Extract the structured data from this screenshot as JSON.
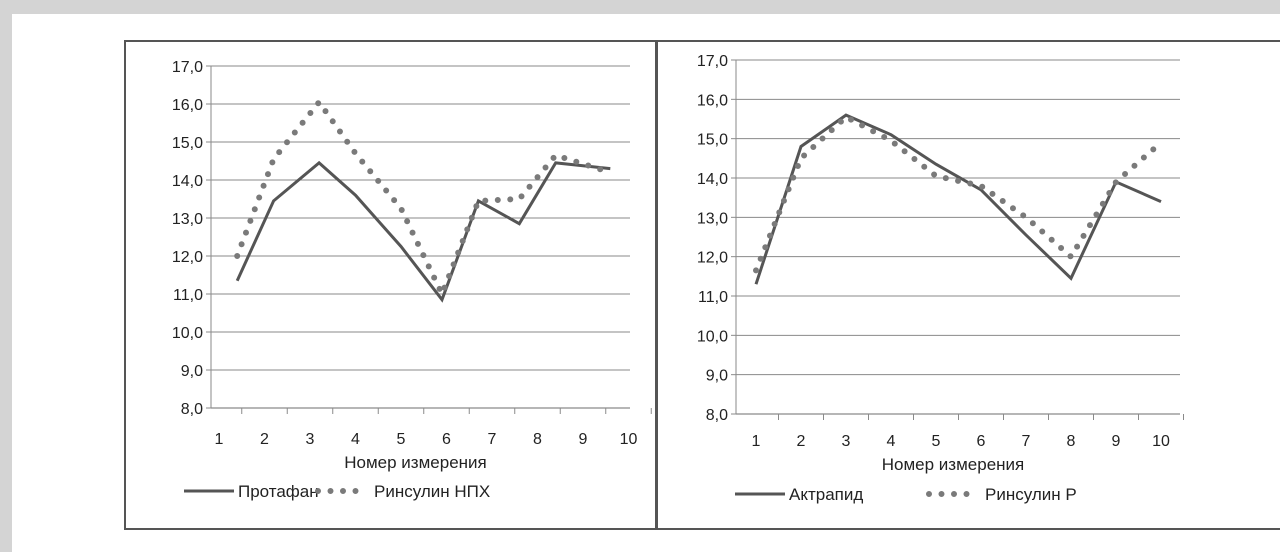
{
  "chart_data": [
    {
      "type": "line",
      "xlabel": "Номер измерения",
      "ylabel": "",
      "ylim": [
        8.0,
        17.0
      ],
      "yticks": [
        "8,0",
        "9,0",
        "10,0",
        "11,0",
        "12,0",
        "13,0",
        "14,0",
        "15,0",
        "16,0",
        "17,0"
      ],
      "categories": [
        "1",
        "2",
        "3",
        "4",
        "5",
        "6",
        "7",
        "8",
        "9",
        "10"
      ],
      "grid": true,
      "legend": "bottom",
      "series": [
        {
          "name": "Протафан",
          "style": "solid",
          "color": "#555555",
          "x": [
            1.4,
            2.2,
            3.2,
            4.0,
            5.0,
            5.9,
            6.7,
            7.6,
            8.4,
            9.6
          ],
          "values": [
            11.35,
            13.45,
            14.45,
            13.6,
            12.25,
            10.85,
            13.45,
            12.85,
            14.45,
            14.3
          ]
        },
        {
          "name": "Ринсулин НПХ",
          "style": "dotted",
          "color": "#7a7a7a",
          "x": [
            1.4,
            2.2,
            3.2,
            4.0,
            5.0,
            5.9,
            6.7,
            7.6,
            8.4,
            9.6
          ],
          "values": [
            12.0,
            14.55,
            16.05,
            14.7,
            13.25,
            11.0,
            13.45,
            13.5,
            14.65,
            14.2
          ]
        }
      ]
    },
    {
      "type": "line",
      "xlabel": "Номер измерения",
      "ylabel": "",
      "ylim": [
        8.0,
        17.0
      ],
      "yticks": [
        "8,0",
        "9,0",
        "10,0",
        "11,0",
        "12,0",
        "13,0",
        "14,0",
        "15,0",
        "16,0",
        "17,0"
      ],
      "categories": [
        "1",
        "2",
        "3",
        "4",
        "5",
        "6",
        "7",
        "8",
        "9",
        "10"
      ],
      "grid": true,
      "legend": "bottom",
      "series": [
        {
          "name": "Актрапид",
          "style": "solid",
          "color": "#555555",
          "x": [
            1,
            2,
            3,
            4,
            5,
            6,
            7,
            8,
            9,
            10
          ],
          "values": [
            11.3,
            14.8,
            15.6,
            15.1,
            14.35,
            13.7,
            12.55,
            11.45,
            13.9,
            13.4
          ]
        },
        {
          "name": "Ринсулин Р",
          "style": "dotted",
          "color": "#7a7a7a",
          "x": [
            1,
            2,
            3,
            4,
            5,
            6,
            7,
            8,
            9,
            10
          ],
          "values": [
            11.65,
            14.5,
            15.55,
            14.95,
            14.05,
            13.8,
            13.0,
            12.0,
            13.9,
            14.9
          ]
        }
      ]
    }
  ]
}
